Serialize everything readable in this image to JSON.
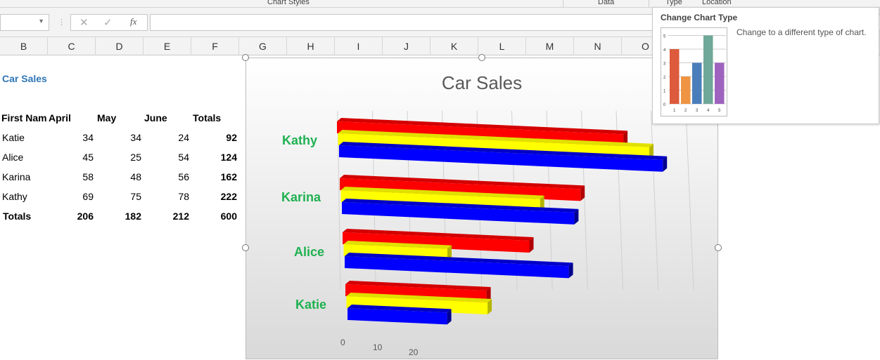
{
  "ribbon": {
    "groups": [
      "Chart Styles",
      "Data",
      "Type",
      "Location"
    ]
  },
  "formula_bar": {
    "name_box": "",
    "cancel_icon": "✕",
    "enter_icon": "✓",
    "fx_label": "fx",
    "value": ""
  },
  "columns": [
    "B",
    "C",
    "D",
    "E",
    "F",
    "G",
    "H",
    "I",
    "J",
    "K",
    "L",
    "M",
    "N",
    "O"
  ],
  "sheet": {
    "title": "Car Sales",
    "headers": [
      "First Nam",
      "April",
      "May",
      "June",
      "Totals"
    ],
    "rows": [
      {
        "name": "Katie",
        "april": "34",
        "may": "34",
        "june": "24",
        "total": "92"
      },
      {
        "name": "Alice",
        "april": "45",
        "may": "25",
        "june": "54",
        "total": "124"
      },
      {
        "name": "Karina",
        "april": "58",
        "may": "48",
        "june": "56",
        "total": "162"
      },
      {
        "name": "Kathy",
        "april": "69",
        "may": "75",
        "june": "78",
        "total": "222"
      }
    ],
    "totals": {
      "label": "Totals",
      "april": "206",
      "may": "182",
      "june": "212",
      "total": "600"
    }
  },
  "chart_data": {
    "type": "bar",
    "orientation": "horizontal",
    "style": "3d-clustered",
    "title": "Car Sales",
    "categories": [
      "Kathy",
      "Karina",
      "Alice",
      "Katie"
    ],
    "series": [
      {
        "values": [
          69,
          58,
          45,
          34
        ],
        "color": "#ff0000"
      },
      {
        "values": [
          75,
          48,
          25,
          34
        ],
        "color": "#ffff00"
      },
      {
        "values": [
          78,
          56,
          54,
          24
        ],
        "color": "#0000ff"
      }
    ],
    "x_ticks": [
      "0",
      "10",
      "20"
    ],
    "category_label_color": "#1fb150",
    "grid": true
  },
  "tooltip": {
    "title": "Change Chart Type",
    "description": "Change to a different type of chart.",
    "preview": {
      "values": [
        4,
        2,
        3,
        5,
        3
      ],
      "labels": [
        "1",
        "2",
        "3",
        "4",
        "5"
      ],
      "y_ticks": [
        "0",
        "1",
        "2",
        "3",
        "4",
        "5"
      ],
      "colors": [
        "#dd5a3c",
        "#ee9443",
        "#4a7ebb",
        "#6fa898",
        "#9e62bf"
      ]
    }
  }
}
